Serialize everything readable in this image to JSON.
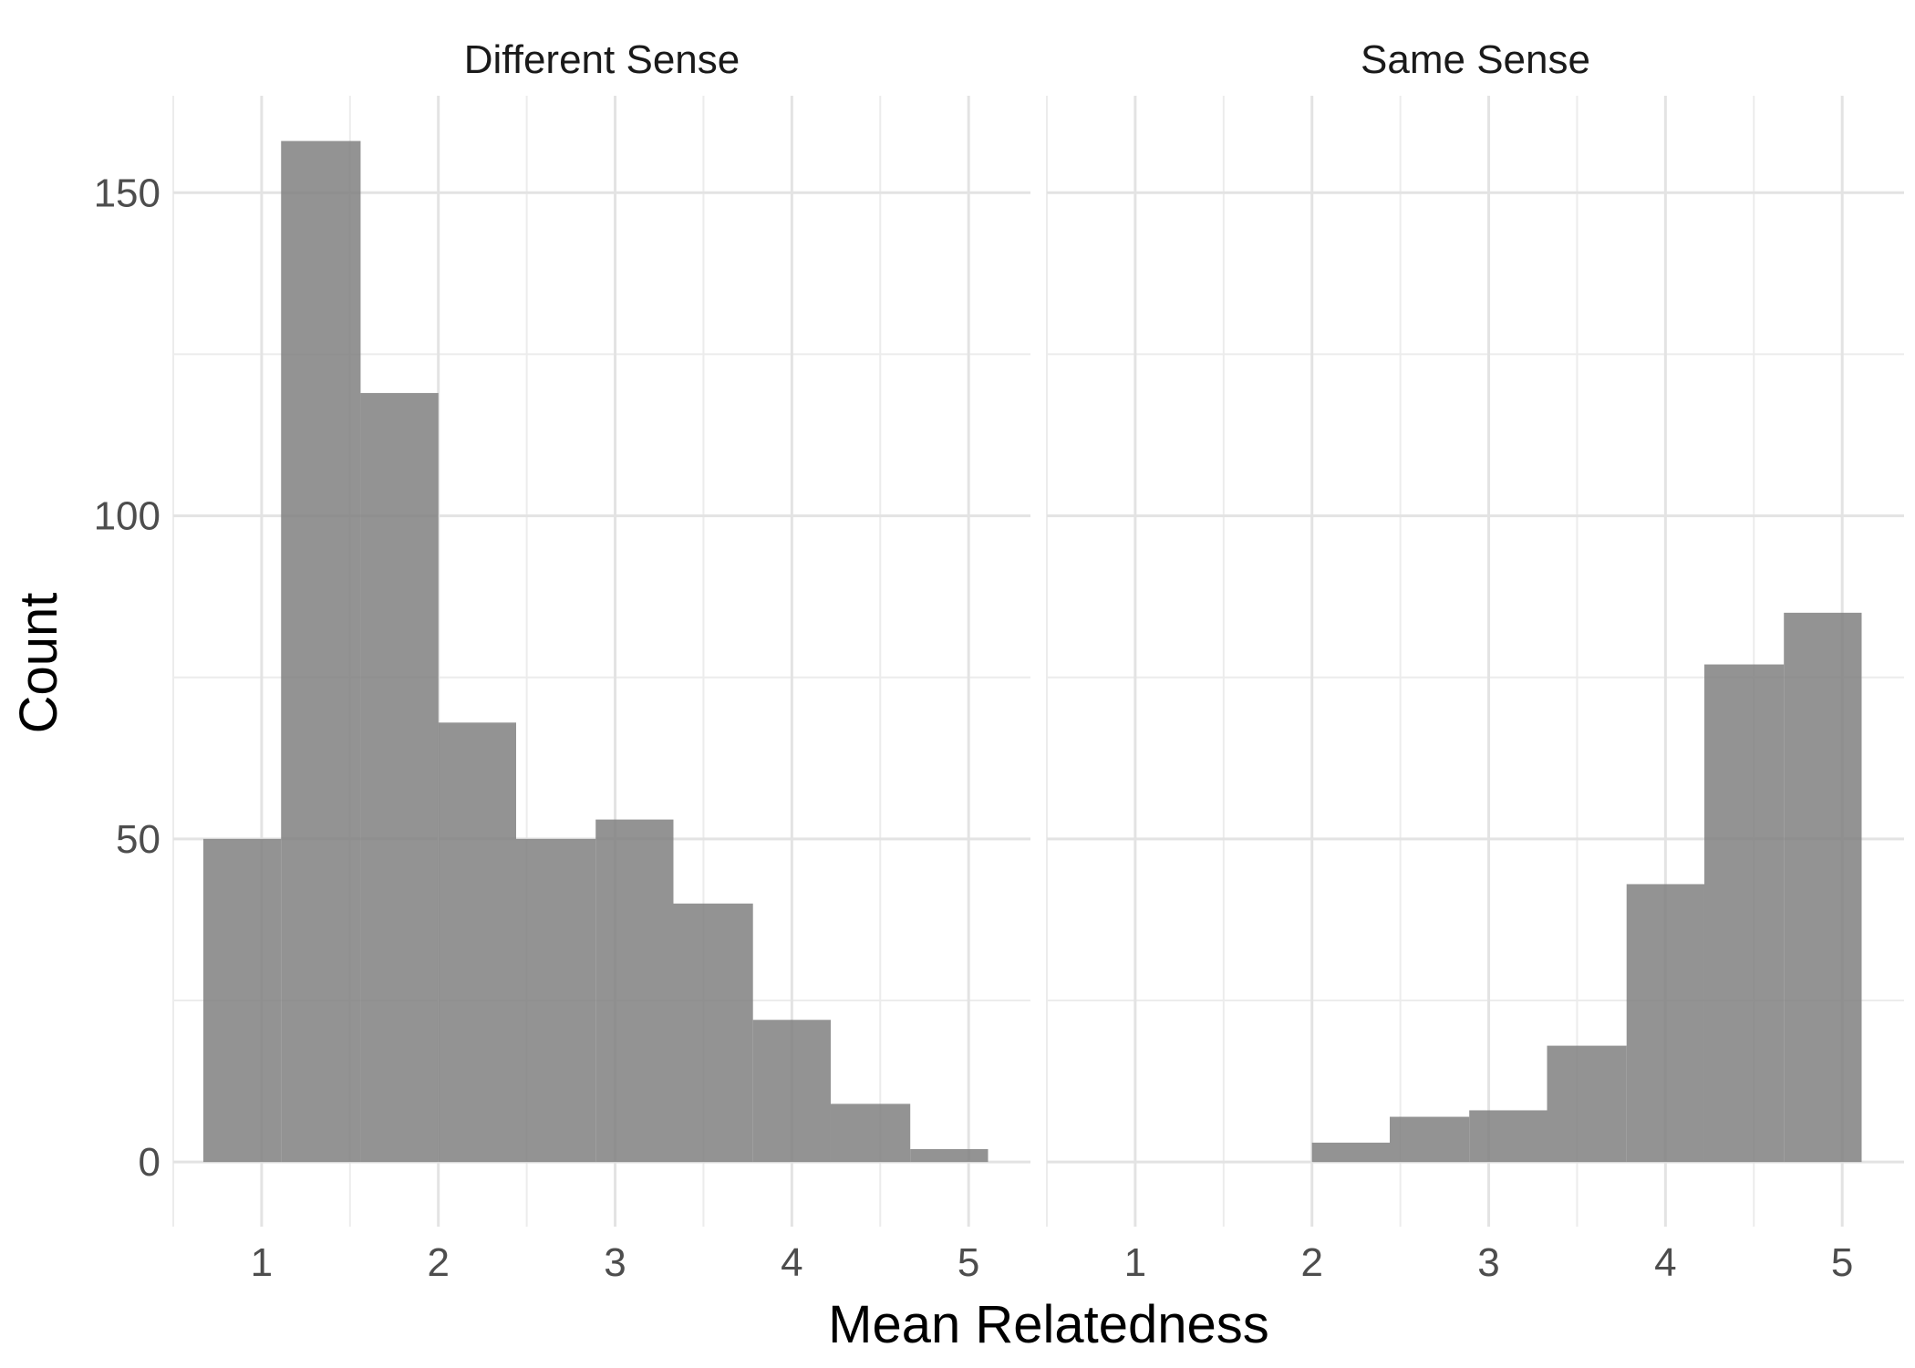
{
  "chart_data": {
    "type": "bar",
    "subtype": "faceted-histogram",
    "xlabel": "Mean Relatedness",
    "ylabel": "Count",
    "xlim": [
      0.5,
      5.35
    ],
    "ylim": [
      -10,
      165
    ],
    "x_ticks": [
      1,
      2,
      3,
      4,
      5
    ],
    "y_ticks": [
      0,
      50,
      100,
      150
    ],
    "grid": true,
    "bar_color": "#808080",
    "bin_width": 0.444,
    "facets": [
      {
        "label": "Different Sense",
        "bins": [
          {
            "x0": 0.67,
            "x1": 1.11,
            "count": 50
          },
          {
            "x0": 1.11,
            "x1": 1.56,
            "count": 158
          },
          {
            "x0": 1.56,
            "x1": 2.0,
            "count": 119
          },
          {
            "x0": 2.0,
            "x1": 2.44,
            "count": 68
          },
          {
            "x0": 2.44,
            "x1": 2.89,
            "count": 50
          },
          {
            "x0": 2.89,
            "x1": 3.33,
            "count": 53
          },
          {
            "x0": 3.33,
            "x1": 3.78,
            "count": 40
          },
          {
            "x0": 3.78,
            "x1": 4.22,
            "count": 22
          },
          {
            "x0": 4.22,
            "x1": 4.67,
            "count": 9
          },
          {
            "x0": 4.67,
            "x1": 5.11,
            "count": 2
          }
        ]
      },
      {
        "label": "Same Sense",
        "bins": [
          {
            "x0": 2.0,
            "x1": 2.44,
            "count": 3
          },
          {
            "x0": 2.44,
            "x1": 2.89,
            "count": 7
          },
          {
            "x0": 2.89,
            "x1": 3.33,
            "count": 8
          },
          {
            "x0": 3.33,
            "x1": 3.78,
            "count": 18
          },
          {
            "x0": 3.78,
            "x1": 4.22,
            "count": 43
          },
          {
            "x0": 4.22,
            "x1": 4.67,
            "count": 77
          },
          {
            "x0": 4.67,
            "x1": 5.11,
            "count": 85
          }
        ]
      }
    ]
  }
}
